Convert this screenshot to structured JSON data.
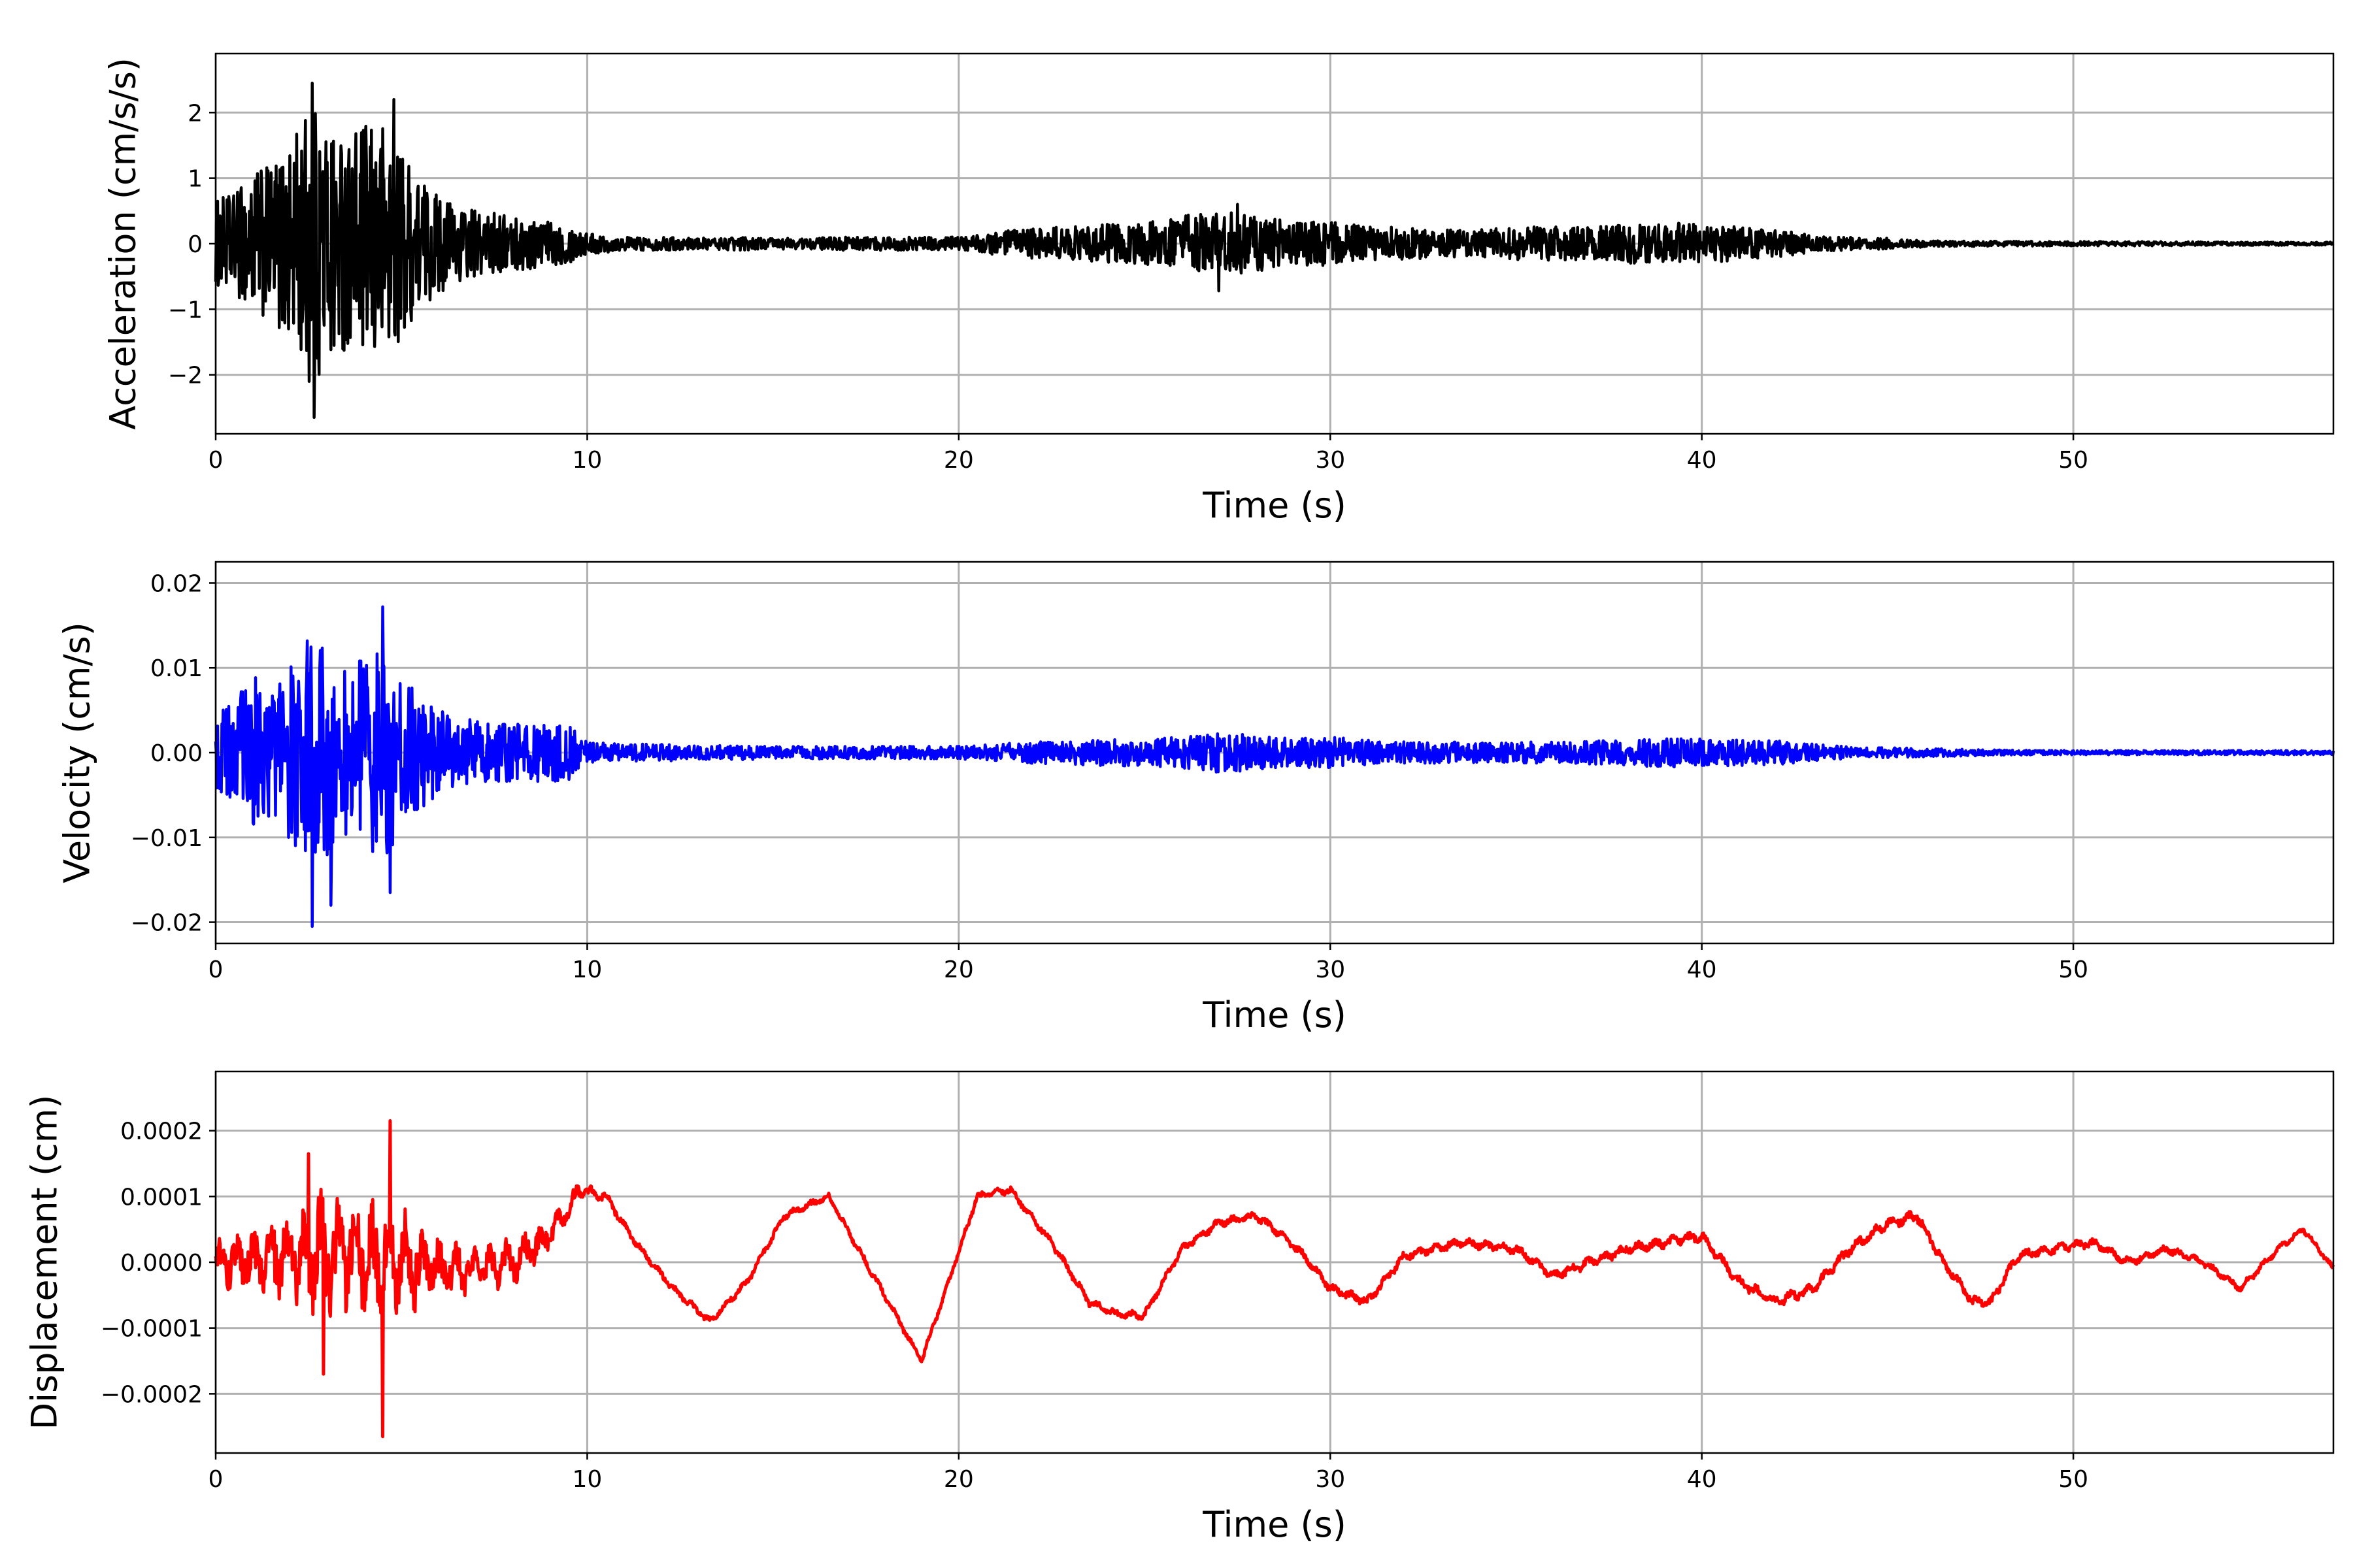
{
  "chart_data": [
    {
      "type": "line",
      "title": "",
      "xlabel": "Time (s)",
      "ylabel": "Acceleration (cm/s/s)",
      "xlim": [
        0,
        57
      ],
      "ylim": [
        -2.9,
        2.9
      ],
      "grid": true,
      "color": "#000000",
      "x_ticks": [
        0,
        10,
        20,
        30,
        40,
        50
      ],
      "y_ticks": [
        2,
        1,
        0,
        -1,
        -2
      ],
      "x_tick_labels": [
        "0",
        "10",
        "20",
        "30",
        "40",
        "50"
      ],
      "y_tick_labels": [
        "2",
        "1",
        "0",
        "−1",
        "−2"
      ],
      "series": [
        {
          "kind": "noise-envelope",
          "envelope_t": [
            0,
            0.5,
            1,
            1.5,
            2,
            2.5,
            3,
            3.5,
            4,
            4.5,
            5,
            5.5,
            6,
            6.5,
            7,
            7.5,
            8,
            8.5,
            9,
            9.5,
            10,
            11,
            12,
            13,
            14,
            15,
            16,
            17,
            18,
            19,
            20,
            21,
            22,
            23,
            24,
            25,
            26,
            27,
            28,
            29,
            30,
            31,
            32,
            33,
            34,
            35,
            36,
            37,
            38,
            39,
            40,
            41,
            42,
            43,
            44,
            45,
            46,
            47,
            48,
            50,
            52,
            54,
            57
          ],
          "envelope_amp": [
            0.8,
            0.9,
            1.3,
            1.4,
            1.8,
            2.5,
            2.3,
            1.9,
            2.1,
            2.2,
            1.7,
            1.2,
            0.9,
            0.7,
            0.6,
            0.55,
            0.5,
            0.45,
            0.4,
            0.35,
            0.2,
            0.12,
            0.12,
            0.1,
            0.12,
            0.1,
            0.1,
            0.12,
            0.12,
            0.12,
            0.12,
            0.2,
            0.3,
            0.3,
            0.35,
            0.4,
            0.5,
            0.6,
            0.5,
            0.4,
            0.4,
            0.3,
            0.3,
            0.25,
            0.25,
            0.3,
            0.3,
            0.3,
            0.35,
            0.4,
            0.35,
            0.3,
            0.25,
            0.15,
            0.12,
            0.1,
            0.06,
            0.05,
            0.05,
            0.04,
            0.04,
            0.03,
            0.03
          ],
          "extremes": [
            [
              2.6,
              2.45
            ],
            [
              2.65,
              -2.65
            ],
            [
              4.8,
              2.2
            ],
            [
              27.5,
              0.6
            ],
            [
              27,
              -0.72
            ]
          ]
        }
      ]
    },
    {
      "type": "line",
      "title": "",
      "xlabel": "Time (s)",
      "ylabel": "Velocity (cm/s)",
      "xlim": [
        0,
        57
      ],
      "ylim": [
        -0.0225,
        0.0225
      ],
      "grid": true,
      "color": "#0000ff",
      "x_ticks": [
        0,
        10,
        20,
        30,
        40,
        50
      ],
      "y_ticks": [
        0.02,
        0.01,
        0.0,
        -0.01,
        -0.02
      ],
      "x_tick_labels": [
        "0",
        "10",
        "20",
        "30",
        "40",
        "50"
      ],
      "y_tick_labels": [
        "0.02",
        "0.01",
        "0.00",
        "−0.01",
        "−0.02"
      ],
      "series": [
        {
          "kind": "noise-envelope",
          "envelope_t": [
            0,
            0.5,
            1,
            1.5,
            2,
            2.5,
            3,
            3.5,
            4,
            4.5,
            5,
            5.5,
            6,
            6.5,
            7,
            7.5,
            8,
            8.5,
            9,
            9.5,
            10,
            11,
            12,
            13,
            14,
            15,
            16,
            17,
            18,
            19,
            20,
            21,
            22,
            23,
            24,
            25,
            26,
            27,
            28,
            29,
            30,
            31,
            32,
            33,
            34,
            35,
            36,
            37,
            38,
            39,
            40,
            41,
            42,
            43,
            44,
            45,
            46,
            47,
            48,
            50,
            52,
            54,
            57
          ],
          "envelope_amp": [
            0.006,
            0.007,
            0.011,
            0.009,
            0.012,
            0.016,
            0.015,
            0.012,
            0.013,
            0.015,
            0.011,
            0.008,
            0.006,
            0.005,
            0.0045,
            0.004,
            0.004,
            0.004,
            0.004,
            0.004,
            0.0015,
            0.0012,
            0.0012,
            0.001,
            0.001,
            0.0009,
            0.0009,
            0.0009,
            0.0009,
            0.0009,
            0.0009,
            0.0012,
            0.0015,
            0.0017,
            0.0018,
            0.0019,
            0.0022,
            0.0028,
            0.0024,
            0.002,
            0.0022,
            0.0018,
            0.0015,
            0.0015,
            0.0014,
            0.0015,
            0.0015,
            0.0016,
            0.0018,
            0.002,
            0.002,
            0.0018,
            0.0017,
            0.0012,
            0.0008,
            0.0007,
            0.0006,
            0.0005,
            0.0004,
            0.0003,
            0.0003,
            0.0003,
            0.0003
          ],
          "extremes": [
            [
              4.5,
              0.0172
            ],
            [
              2.6,
              -0.0205
            ],
            [
              3.1,
              -0.018
            ],
            [
              4.7,
              -0.0165
            ]
          ]
        }
      ]
    },
    {
      "type": "line",
      "title": "",
      "xlabel": "Time (s)",
      "ylabel": "Displacement (cm)",
      "xlim": [
        0,
        57
      ],
      "ylim": [
        -0.00029,
        0.00029
      ],
      "grid": true,
      "color": "#ff0000",
      "x_ticks": [
        0,
        10,
        20,
        30,
        40,
        50
      ],
      "y_ticks": [
        0.0002,
        0.0001,
        0.0,
        -0.0001,
        -0.0002
      ],
      "x_tick_labels": [
        "0",
        "10",
        "20",
        "30",
        "40",
        "50"
      ],
      "y_tick_labels": [
        "0.0002",
        "0.0001",
        "0.0000",
        "−0.0001",
        "−0.0002"
      ],
      "series": [
        {
          "kind": "trend-plus-noise",
          "trend_t": [
            0,
            1,
            2,
            3,
            4,
            5,
            6,
            7,
            8,
            9,
            9.8,
            10.5,
            11.3,
            12.3,
            13.3,
            14.3,
            15.3,
            16.5,
            17.5,
            18.5,
            19,
            19.6,
            20.5,
            21.4,
            22.5,
            23.5,
            24.3,
            25,
            26,
            27,
            28,
            28.5,
            29.3,
            30,
            31,
            32,
            33.5,
            35,
            36,
            37,
            38,
            39,
            40,
            41,
            42,
            43,
            44,
            45,
            45.8,
            46.5,
            47.3,
            47.8,
            48.5,
            49.5,
            50.5,
            51.5,
            52.5,
            53.5,
            54.5,
            55.5,
            56.2,
            57
          ],
          "trend_val": [
            0.0,
            0.0,
            1e-05,
            2e-05,
            1e-05,
            0.0,
            -1e-05,
            -1e-05,
            0.0,
            4e-05,
            0.00011,
            0.0001,
            3e-05,
            -4e-05,
            -9e-05,
            -3e-05,
            7e-05,
            0.0001,
            0.0,
            -0.0001,
            -0.00015,
            -5e-05,
            0.0001,
            0.00011,
            3e-05,
            -6e-05,
            -8e-05,
            -8e-05,
            2e-05,
            6e-05,
            7e-05,
            5e-05,
            1e-05,
            -4e-05,
            -6e-05,
            1e-05,
            3e-05,
            2e-05,
            -2e-05,
            0.0,
            2e-05,
            3e-05,
            4e-05,
            -3e-05,
            -6e-05,
            -4e-05,
            2e-05,
            6e-05,
            7e-05,
            0.0,
            -6e-05,
            -6e-05,
            1e-05,
            2e-05,
            3e-05,
            0.0,
            2e-05,
            0.0,
            -4e-05,
            2e-05,
            5e-05,
            -1e-05
          ],
          "noise_t": [
            0,
            1,
            2,
            3,
            4,
            5,
            6,
            7,
            8,
            9,
            10,
            10.5,
            12,
            20,
            30,
            45,
            57
          ],
          "noise_amp": [
            3e-05,
            4e-05,
            6e-05,
            9e-05,
            7e-05,
            7e-05,
            4e-05,
            3e-05,
            3e-05,
            2e-05,
            1e-05,
            6e-06,
            5e-06,
            5e-06,
            6e-06,
            8e-06,
            4e-06
          ],
          "extremes": [
            [
              4.7,
              0.000215
            ],
            [
              4.5,
              -0.000265
            ],
            [
              2.9,
              -0.00017
            ],
            [
              2.5,
              0.000165
            ]
          ]
        }
      ]
    }
  ]
}
